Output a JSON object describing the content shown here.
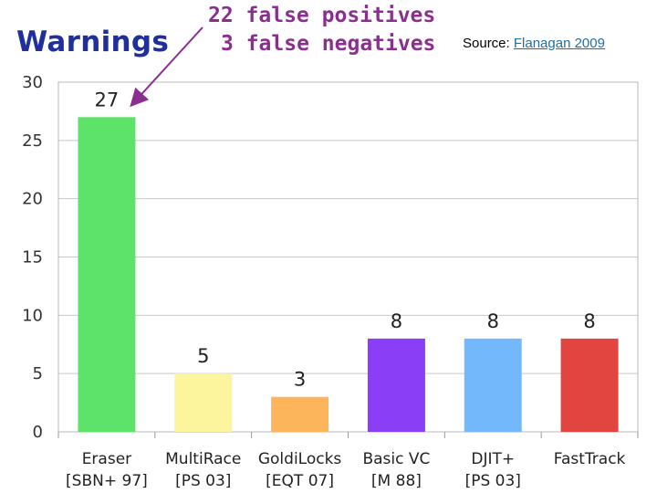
{
  "header": {
    "title": "Warnings",
    "note_line1": "22 false positives",
    "note_line2": "3 false negatives",
    "source_prefix": "Source: ",
    "source_link": "Flanagan 2009"
  },
  "chart_data": {
    "type": "bar",
    "categories": [
      "Eraser",
      "MultiRace",
      "GoldiLocks",
      "Basic VC",
      "DJIT+",
      "FastTrack"
    ],
    "subcategories": [
      "[SBN+ 97]",
      "[PS 03]",
      "[EQT 07]",
      "[M 88]",
      "[PS 03]",
      ""
    ],
    "values": [
      27,
      5,
      3,
      8,
      8,
      8
    ],
    "colors": [
      "#5ee36a",
      "#fdf59e",
      "#fdb55c",
      "#8a3ef5",
      "#72b8fb",
      "#e2443f"
    ],
    "ylim": [
      0,
      30
    ],
    "yticks": [
      0,
      5,
      10,
      15,
      20,
      25,
      30
    ],
    "grid": true,
    "xlabel": "",
    "ylabel": "",
    "annotation_arrow_target": "Eraser"
  }
}
